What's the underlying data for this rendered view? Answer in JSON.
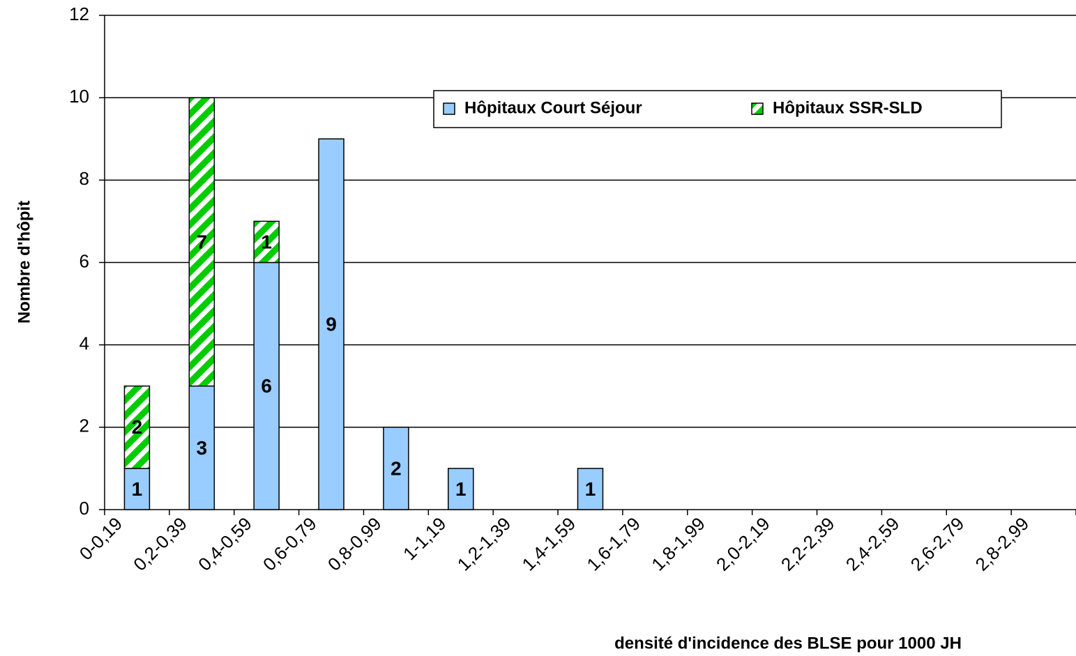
{
  "chart_data": {
    "type": "stacked_bar",
    "x_label": "densité d'incidence des BLSE pour 1000 JH",
    "y_label": "Nombre d'hôpit",
    "categories": [
      "0-0,19",
      "0,2-0,39",
      "0,4-0,59",
      "0,6-0,79",
      "0,8-0,99",
      "1-1,19",
      "1,2-1,39",
      "1,4-1,59",
      "1,6-1,79",
      "1,8-1,99",
      "2,0-2,19",
      "2,2-2,39",
      "2,4-2,59",
      "2,6-2,79",
      "2,8-2,99"
    ],
    "series": [
      {
        "name": "Hôpitaux Court Séjour",
        "color": "#99ccff",
        "values": [
          1,
          3,
          6,
          9,
          2,
          1,
          null,
          1,
          null,
          null,
          null,
          null,
          null,
          null,
          null
        ]
      },
      {
        "name": "Hôpitaux SSR-SLD",
        "color": "#00cc00",
        "values": [
          2,
          7,
          1,
          null,
          null,
          null,
          null,
          null,
          null,
          null,
          null,
          null,
          null,
          null,
          null
        ]
      }
    ],
    "ylim": [
      0,
      12
    ],
    "yticks": [
      0,
      2,
      4,
      6,
      8,
      10,
      12
    ],
    "grid": true
  }
}
